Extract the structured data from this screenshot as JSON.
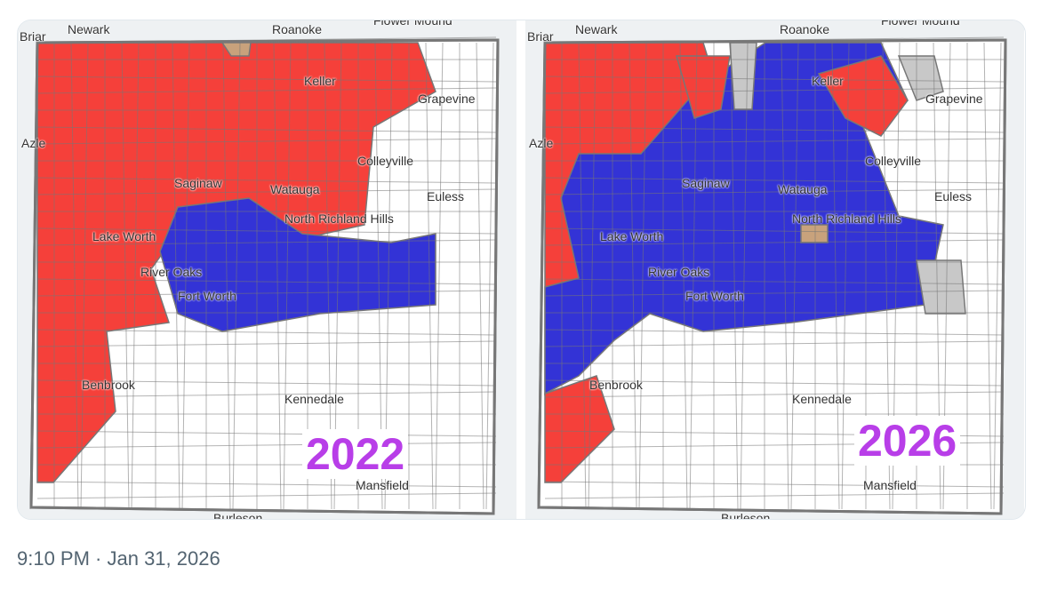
{
  "maps": [
    {
      "year": "2022",
      "labels": {
        "newark": "Newark",
        "roanoke": "Roanoke",
        "flower": "Flower Mound",
        "briar": "Briar",
        "keller": "Keller",
        "grapevine": "Grapevine",
        "azle": "Azle",
        "colleyville": "Colleyville",
        "saginaw": "Saginaw",
        "watauga": "Watauga",
        "nrh": "North Richland Hills",
        "lakeworth": "Lake Worth",
        "riveroaks": "River Oaks",
        "fortworth": "Fort Worth",
        "euless": "Euless",
        "benbrook": "Benbrook",
        "kennedale": "Kennedale",
        "mansfield": "Mansfield",
        "burleson": "Burleson"
      }
    },
    {
      "year": "2026",
      "labels": {
        "newark": "Newark",
        "roanoke": "Roanoke",
        "flower": "Flower Mound",
        "briar": "Briar",
        "keller": "Keller",
        "grapevine": "Grapevine",
        "azle": "Azle",
        "colleyville": "Colleyville",
        "saginaw": "Saginaw",
        "watauga": "Watauga",
        "nrh": "North Richland Hills",
        "lakeworth": "Lake Worth",
        "riveroaks": "River Oaks",
        "fortworth": "Fort Worth",
        "euless": "Euless",
        "benbrook": "Benbrook",
        "kennedale": "Kennedale",
        "mansfield": "Mansfield",
        "burleson": "Burleson"
      }
    }
  ],
  "colors": {
    "red": "#f5403a",
    "blue": "#3333d6",
    "gray": "#c8c8c8",
    "tan": "#c8a27c",
    "border": "#777777",
    "year": "#b83ee8"
  },
  "timestamp": "9:10 PM · Jan 31, 2026"
}
